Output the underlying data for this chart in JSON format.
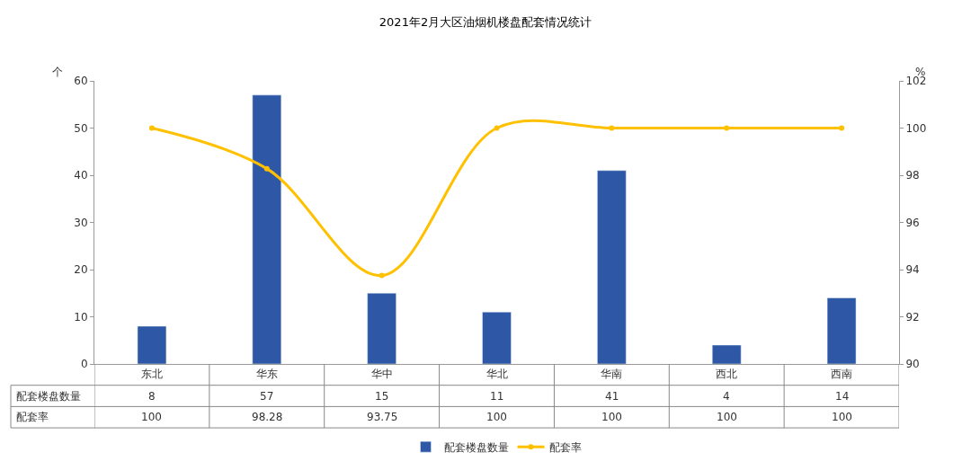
{
  "chart_data": {
    "type": "bar",
    "title": "2021年2月大区油烟机楼盘配套情况统计",
    "ylabel": "个",
    "y2label": "%",
    "categories": [
      "东北",
      "华东",
      "华中",
      "华北",
      "华南",
      "西北",
      "西南"
    ],
    "series": [
      {
        "name": "配套楼盘数量",
        "color": "#2e58a6",
        "values": [
          8,
          57,
          15,
          11,
          41,
          4,
          14
        ]
      },
      {
        "name": "配套率",
        "type": "line",
        "axis": "y2",
        "color": "#ffc000",
        "marker": "circle",
        "values": [
          100,
          98.28,
          93.75,
          100,
          100,
          100,
          100
        ]
      }
    ],
    "ylim": [
      0,
      60
    ],
    "yticks": [
      0,
      10,
      20,
      30,
      40,
      50,
      60
    ],
    "y2lim": [
      90,
      102
    ],
    "y2ticks": [
      90,
      92,
      94,
      96,
      98,
      100,
      102
    ],
    "data_labels": true,
    "legend": "bottom"
  }
}
